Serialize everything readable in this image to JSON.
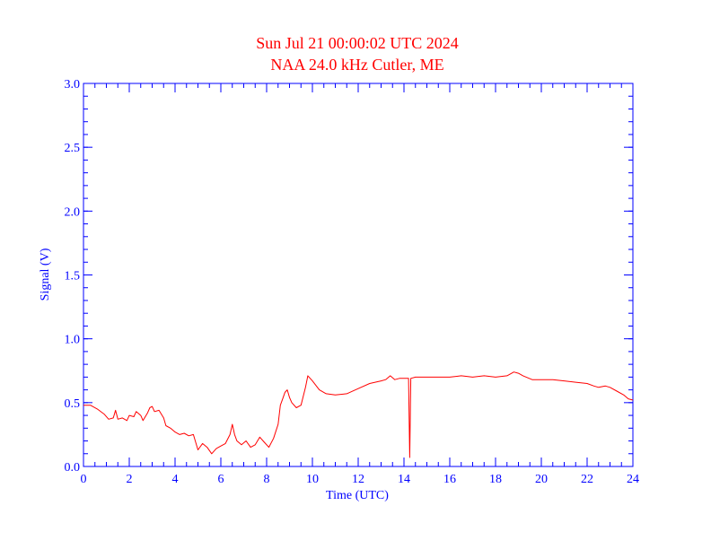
{
  "chart_data": {
    "type": "line",
    "title": "Sun Jul 21 00:00:02 UTC 2024",
    "subtitle": "NAA 24.0 kHz Cutler, ME",
    "xlabel": "Time (UTC)",
    "ylabel": "Signal (V)",
    "xlim": [
      0,
      24
    ],
    "ylim": [
      0,
      3.0
    ],
    "xticks": [
      0,
      2,
      4,
      6,
      8,
      10,
      12,
      14,
      16,
      18,
      20,
      22,
      24
    ],
    "xtick_labels": [
      "0",
      "2",
      "4",
      "6",
      "8",
      "10",
      "12",
      "14",
      "16",
      "18",
      "20",
      "22",
      "24"
    ],
    "yticks": [
      0,
      0.5,
      1.0,
      1.5,
      2.0,
      2.5,
      3.0
    ],
    "ytick_labels": [
      "0.0",
      "0.5",
      "1.0",
      "1.5",
      "2.0",
      "2.5",
      "3.0"
    ],
    "x_minor_step": 0.5,
    "y_minor_step": 0.1,
    "grid": false,
    "colors": {
      "title": "#ff0000",
      "axes": "#0000ff",
      "line": "#ff0000"
    },
    "series": [
      {
        "x": [
          0,
          0.3,
          0.6,
          0.9,
          1.1,
          1.3,
          1.4,
          1.5,
          1.7,
          1.9,
          2.0,
          2.2,
          2.3,
          2.5,
          2.6,
          2.8,
          2.9,
          3.0,
          3.1,
          3.3,
          3.5,
          3.6,
          3.8,
          4.0,
          4.2,
          4.4,
          4.6,
          4.8,
          5.0,
          5.2,
          5.4,
          5.6,
          5.8,
          6.0,
          6.2,
          6.4,
          6.5,
          6.6,
          6.7,
          6.9,
          7.1,
          7.3,
          7.5,
          7.7,
          7.9,
          8.1,
          8.3,
          8.5,
          8.6,
          8.7,
          8.8,
          8.9,
          9.0,
          9.1,
          9.3,
          9.5,
          9.7,
          9.8,
          10.0,
          10.3,
          10.6,
          11.0,
          11.5,
          12.0,
          12.5,
          13.0,
          13.2,
          13.4,
          13.6,
          13.8,
          14.0,
          14.1,
          14.2,
          14.25,
          14.3,
          14.5,
          15.0,
          15.5,
          16.0,
          16.5,
          17.0,
          17.5,
          18.0,
          18.5,
          18.8,
          19.0,
          19.2,
          19.6,
          20.0,
          20.5,
          21.0,
          21.5,
          22.0,
          22.3,
          22.5,
          22.8,
          23.0,
          23.3,
          23.6,
          23.8,
          24.0
        ],
        "values": [
          0.48,
          0.48,
          0.45,
          0.41,
          0.37,
          0.38,
          0.44,
          0.37,
          0.38,
          0.36,
          0.4,
          0.39,
          0.43,
          0.4,
          0.36,
          0.42,
          0.46,
          0.47,
          0.43,
          0.44,
          0.38,
          0.32,
          0.3,
          0.27,
          0.25,
          0.26,
          0.24,
          0.25,
          0.13,
          0.18,
          0.15,
          0.1,
          0.14,
          0.16,
          0.18,
          0.25,
          0.33,
          0.25,
          0.2,
          0.17,
          0.2,
          0.15,
          0.17,
          0.23,
          0.19,
          0.15,
          0.22,
          0.33,
          0.48,
          0.53,
          0.58,
          0.6,
          0.54,
          0.5,
          0.46,
          0.48,
          0.62,
          0.71,
          0.67,
          0.6,
          0.57,
          0.56,
          0.57,
          0.61,
          0.65,
          0.67,
          0.68,
          0.71,
          0.68,
          0.69,
          0.69,
          0.69,
          0.69,
          0.07,
          0.69,
          0.7,
          0.7,
          0.7,
          0.7,
          0.71,
          0.7,
          0.71,
          0.7,
          0.71,
          0.74,
          0.73,
          0.71,
          0.68,
          0.68,
          0.68,
          0.67,
          0.66,
          0.65,
          0.63,
          0.62,
          0.63,
          0.62,
          0.59,
          0.56,
          0.53,
          0.52
        ]
      }
    ]
  }
}
